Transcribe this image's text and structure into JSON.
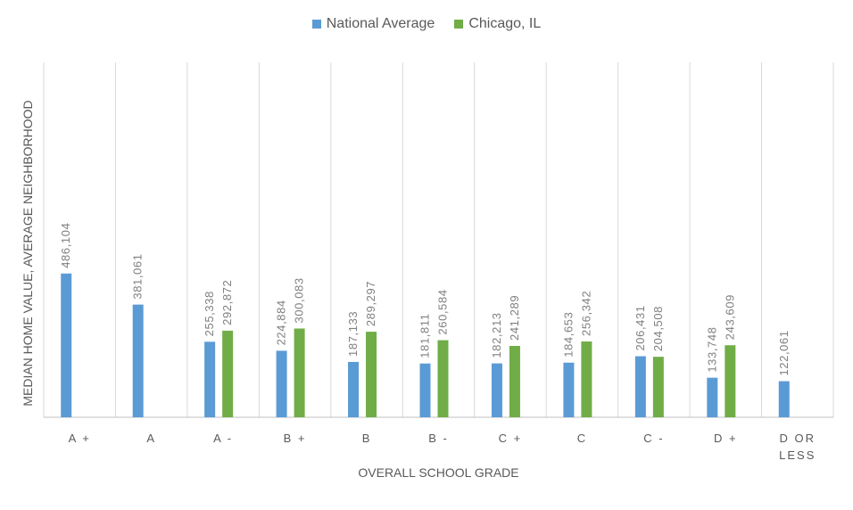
{
  "chart_data": {
    "type": "bar",
    "title": "",
    "xlabel": "OVERALL SCHOOL GRADE",
    "ylabel": "MEDIAN HOME VALUE, AVERAGE NEIGHBORHOOD",
    "categories": [
      "A +",
      "A",
      "A -",
      "B +",
      "B",
      "B -",
      "C +",
      "C",
      "C -",
      "D +",
      "D OR LESS"
    ],
    "category_lines": [
      [
        "A +"
      ],
      [
        "A"
      ],
      [
        "A -"
      ],
      [
        "B +"
      ],
      [
        "B"
      ],
      [
        "B -"
      ],
      [
        "C +"
      ],
      [
        "C"
      ],
      [
        "C -"
      ],
      [
        "D +"
      ],
      [
        "D   OR",
        "LESS"
      ]
    ],
    "series": [
      {
        "name": "National Average",
        "color": "#5B9BD5",
        "values": [
          486104,
          381061,
          255338,
          224884,
          187133,
          181811,
          182213,
          184653,
          206431,
          133748,
          122061
        ],
        "labels": [
          "486,104",
          "381,061",
          "255,338",
          "224,884",
          "187,133",
          "181,811",
          "182,213",
          "184,653",
          "206,431",
          "133,748",
          "122,061"
        ]
      },
      {
        "name": "Chicago, IL",
        "color": "#70AD47",
        "values": [
          null,
          null,
          292872,
          300083,
          289297,
          260584,
          241289,
          256342,
          204508,
          243609,
          null
        ],
        "labels": [
          "",
          "",
          "292,872",
          "300,083",
          "289,297",
          "260,584",
          "241,289",
          "256,342",
          "204,508",
          "243,609",
          ""
        ]
      }
    ],
    "ylim": [
      0,
      1200000
    ],
    "grid": "vertical category separators",
    "legend_position": "top-center"
  }
}
